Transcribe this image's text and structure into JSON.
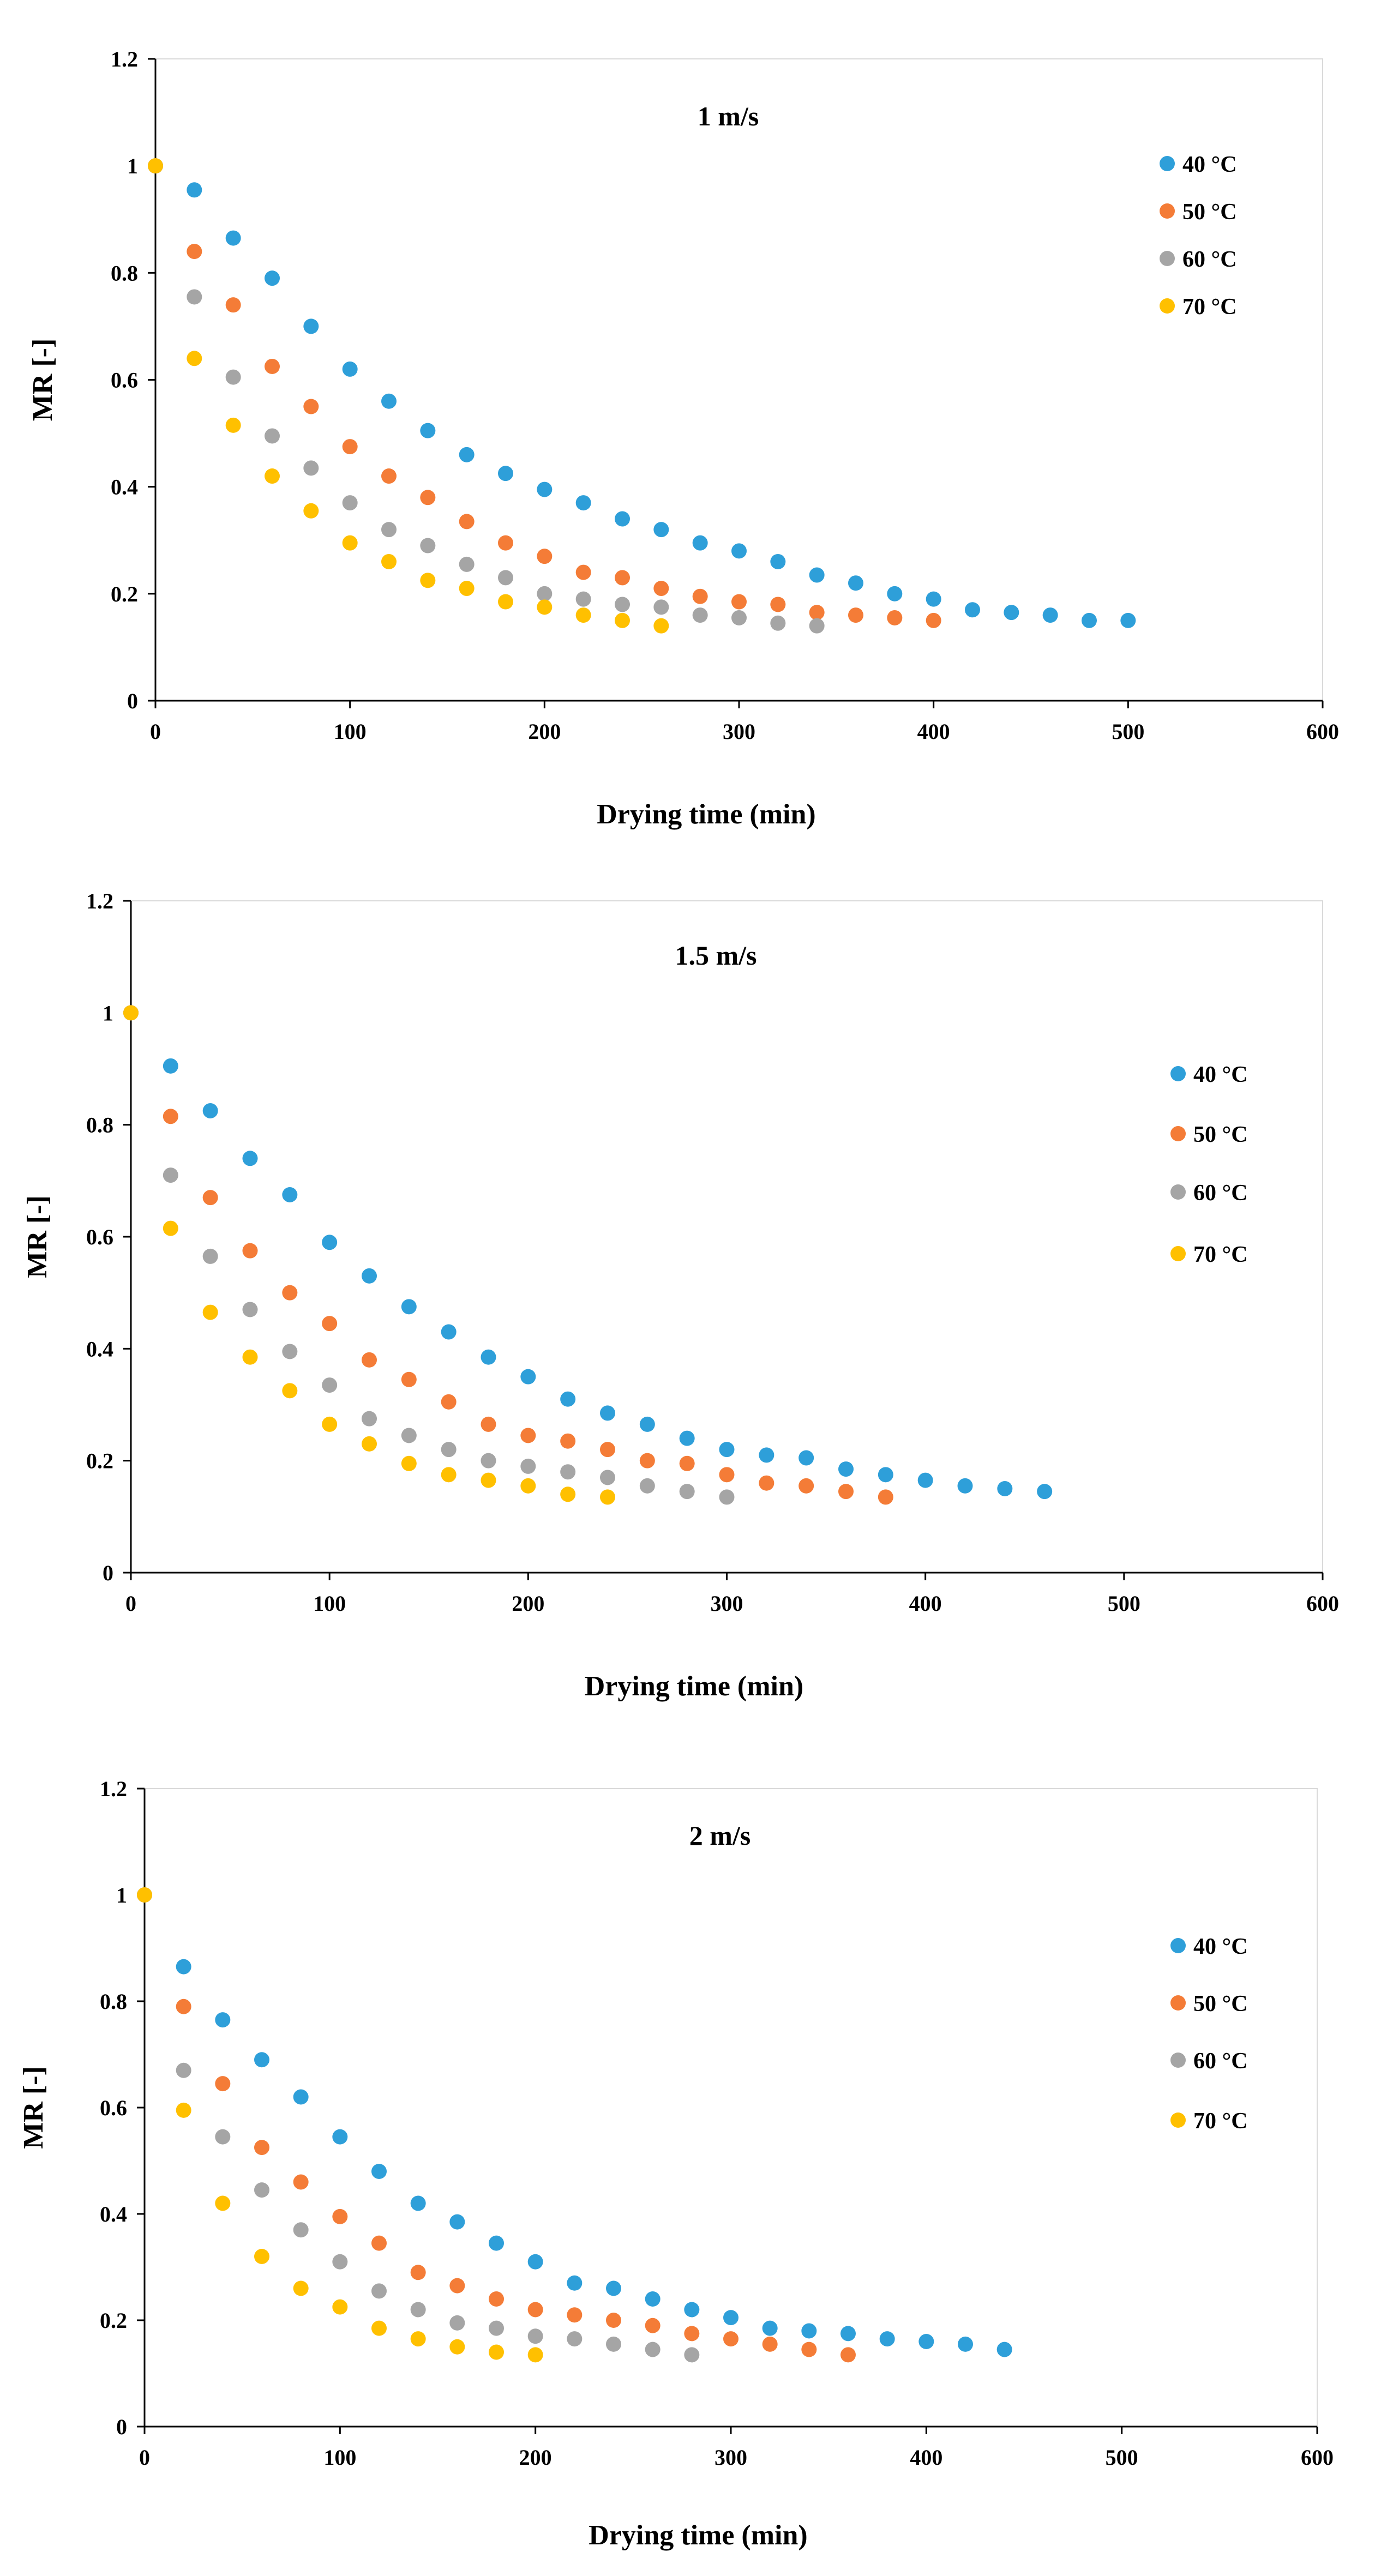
{
  "chart_data": [
    {
      "type": "scatter",
      "title": "1 m/s",
      "xlabel": "Drying time (min)",
      "ylabel": "MR [-]",
      "xlim": [
        0,
        600
      ],
      "ylim": [
        0,
        1.2
      ],
      "xticks": [
        "0",
        "100",
        "200",
        "300",
        "400",
        "500",
        "600"
      ],
      "yticks": [
        "0",
        "0.2",
        "0.4",
        "0.6",
        "0.8",
        "1",
        "1.2"
      ],
      "grid": false,
      "legend_position": "top-right",
      "series": [
        {
          "name": "40 °C",
          "color": "#2e9fd9",
          "x": [
            0,
            20,
            40,
            60,
            80,
            100,
            120,
            140,
            160,
            180,
            200,
            220,
            240,
            260,
            280,
            300,
            320,
            340,
            360,
            380,
            400,
            420,
            440,
            460,
            480,
            500
          ],
          "y": [
            1,
            0.955,
            0.865,
            0.79,
            0.7,
            0.62,
            0.56,
            0.505,
            0.46,
            0.425,
            0.395,
            0.37,
            0.34,
            0.32,
            0.295,
            0.28,
            0.26,
            0.235,
            0.22,
            0.2,
            0.19,
            0.17,
            0.165,
            0.16,
            0.15,
            0.15
          ]
        },
        {
          "name": "50 °C",
          "color": "#f47c37",
          "x": [
            0,
            20,
            40,
            60,
            80,
            100,
            120,
            140,
            160,
            180,
            200,
            220,
            240,
            260,
            280,
            300,
            320,
            340,
            360,
            380,
            400
          ],
          "y": [
            1,
            0.84,
            0.74,
            0.625,
            0.55,
            0.475,
            0.42,
            0.38,
            0.335,
            0.295,
            0.27,
            0.24,
            0.23,
            0.21,
            0.195,
            0.185,
            0.18,
            0.165,
            0.16,
            0.155,
            0.15
          ]
        },
        {
          "name": "60 °C",
          "color": "#a5a5a5",
          "x": [
            0,
            20,
            40,
            60,
            80,
            100,
            120,
            140,
            160,
            180,
            200,
            220,
            240,
            260,
            280,
            300,
            320,
            340
          ],
          "y": [
            1,
            0.755,
            0.605,
            0.495,
            0.435,
            0.37,
            0.32,
            0.29,
            0.255,
            0.23,
            0.2,
            0.19,
            0.18,
            0.175,
            0.16,
            0.155,
            0.145,
            0.14
          ]
        },
        {
          "name": "70 °C",
          "color": "#ffc000",
          "x": [
            0,
            20,
            40,
            60,
            80,
            100,
            120,
            140,
            160,
            180,
            200,
            220,
            240,
            260
          ],
          "y": [
            1,
            0.64,
            0.515,
            0.42,
            0.355,
            0.295,
            0.26,
            0.225,
            0.21,
            0.185,
            0.175,
            0.16,
            0.15,
            0.14
          ]
        }
      ]
    },
    {
      "type": "scatter",
      "title": "1.5 m/s",
      "xlabel": "Drying time (min)",
      "ylabel": "MR [-]",
      "xlim": [
        0,
        600
      ],
      "ylim": [
        0,
        1.2
      ],
      "xticks": [
        "0",
        "100",
        "200",
        "300",
        "400",
        "500",
        "600"
      ],
      "yticks": [
        "0",
        "0.2",
        "0.4",
        "0.6",
        "0.8",
        "1",
        "1.2"
      ],
      "grid": false,
      "legend_position": "right",
      "series": [
        {
          "name": "40 °C",
          "color": "#2e9fd9",
          "x": [
            0,
            20,
            40,
            60,
            80,
            100,
            120,
            140,
            160,
            180,
            200,
            220,
            240,
            260,
            280,
            300,
            320,
            340,
            360,
            380,
            400,
            420,
            440,
            460
          ],
          "y": [
            1,
            0.905,
            0.825,
            0.74,
            0.675,
            0.59,
            0.53,
            0.475,
            0.43,
            0.385,
            0.35,
            0.31,
            0.285,
            0.265,
            0.24,
            0.22,
            0.21,
            0.205,
            0.185,
            0.175,
            0.165,
            0.155,
            0.15,
            0.145
          ]
        },
        {
          "name": "50 °C",
          "color": "#f47c37",
          "x": [
            0,
            20,
            40,
            60,
            80,
            100,
            120,
            140,
            160,
            180,
            200,
            220,
            240,
            260,
            280,
            300,
            320,
            340,
            360,
            380
          ],
          "y": [
            1,
            0.815,
            0.67,
            0.575,
            0.5,
            0.445,
            0.38,
            0.345,
            0.305,
            0.265,
            0.245,
            0.235,
            0.22,
            0.2,
            0.195,
            0.175,
            0.16,
            0.155,
            0.145,
            0.135
          ]
        },
        {
          "name": "60 °C",
          "color": "#a5a5a5",
          "x": [
            0,
            20,
            40,
            60,
            80,
            100,
            120,
            140,
            160,
            180,
            200,
            220,
            240,
            260,
            280,
            300
          ],
          "y": [
            1,
            0.71,
            0.565,
            0.47,
            0.395,
            0.335,
            0.275,
            0.245,
            0.22,
            0.2,
            0.19,
            0.18,
            0.17,
            0.155,
            0.145,
            0.135
          ]
        },
        {
          "name": "70 °C",
          "color": "#ffc000",
          "x": [
            0,
            20,
            40,
            60,
            80,
            100,
            120,
            140,
            160,
            180,
            200,
            220,
            240
          ],
          "y": [
            1,
            0.615,
            0.465,
            0.385,
            0.325,
            0.265,
            0.23,
            0.195,
            0.175,
            0.165,
            0.155,
            0.14,
            0.135
          ]
        }
      ]
    },
    {
      "type": "scatter",
      "title": "2 m/s",
      "xlabel": "Drying time (min)",
      "ylabel": "MR [-]",
      "xlim": [
        0,
        600
      ],
      "ylim": [
        0,
        1.2
      ],
      "xticks": [
        "0",
        "100",
        "200",
        "300",
        "400",
        "500",
        "600"
      ],
      "yticks": [
        "0",
        "0.2",
        "0.4",
        "0.6",
        "0.8",
        "1",
        "1.2"
      ],
      "grid": false,
      "legend_position": "right",
      "series": [
        {
          "name": "40 °C",
          "color": "#2e9fd9",
          "x": [
            0,
            20,
            40,
            60,
            80,
            100,
            120,
            140,
            160,
            180,
            200,
            220,
            240,
            260,
            280,
            300,
            320,
            340,
            360,
            380,
            400,
            420,
            440
          ],
          "y": [
            1,
            0.865,
            0.765,
            0.69,
            0.62,
            0.545,
            0.48,
            0.42,
            0.385,
            0.345,
            0.31,
            0.27,
            0.26,
            0.24,
            0.22,
            0.205,
            0.185,
            0.18,
            0.175,
            0.165,
            0.16,
            0.155,
            0.145
          ]
        },
        {
          "name": "50 °C",
          "color": "#f47c37",
          "x": [
            0,
            20,
            40,
            60,
            80,
            100,
            120,
            140,
            160,
            180,
            200,
            220,
            240,
            260,
            280,
            300,
            320,
            340,
            360
          ],
          "y": [
            1,
            0.79,
            0.645,
            0.525,
            0.46,
            0.395,
            0.345,
            0.29,
            0.265,
            0.24,
            0.22,
            0.21,
            0.2,
            0.19,
            0.175,
            0.165,
            0.155,
            0.145,
            0.135
          ]
        },
        {
          "name": "60 °C",
          "color": "#a5a5a5",
          "x": [
            0,
            20,
            40,
            60,
            80,
            100,
            120,
            140,
            160,
            180,
            200,
            220,
            240,
            260,
            280
          ],
          "y": [
            1,
            0.67,
            0.545,
            0.445,
            0.37,
            0.31,
            0.255,
            0.22,
            0.195,
            0.185,
            0.17,
            0.165,
            0.155,
            0.145,
            0.135
          ]
        },
        {
          "name": "70 °C",
          "color": "#ffc000",
          "x": [
            0,
            20,
            40,
            60,
            80,
            100,
            120,
            140,
            160,
            180,
            200
          ],
          "y": [
            1,
            0.595,
            0.42,
            0.32,
            0.26,
            0.225,
            0.185,
            0.165,
            0.15,
            0.14,
            0.135
          ]
        }
      ]
    }
  ]
}
